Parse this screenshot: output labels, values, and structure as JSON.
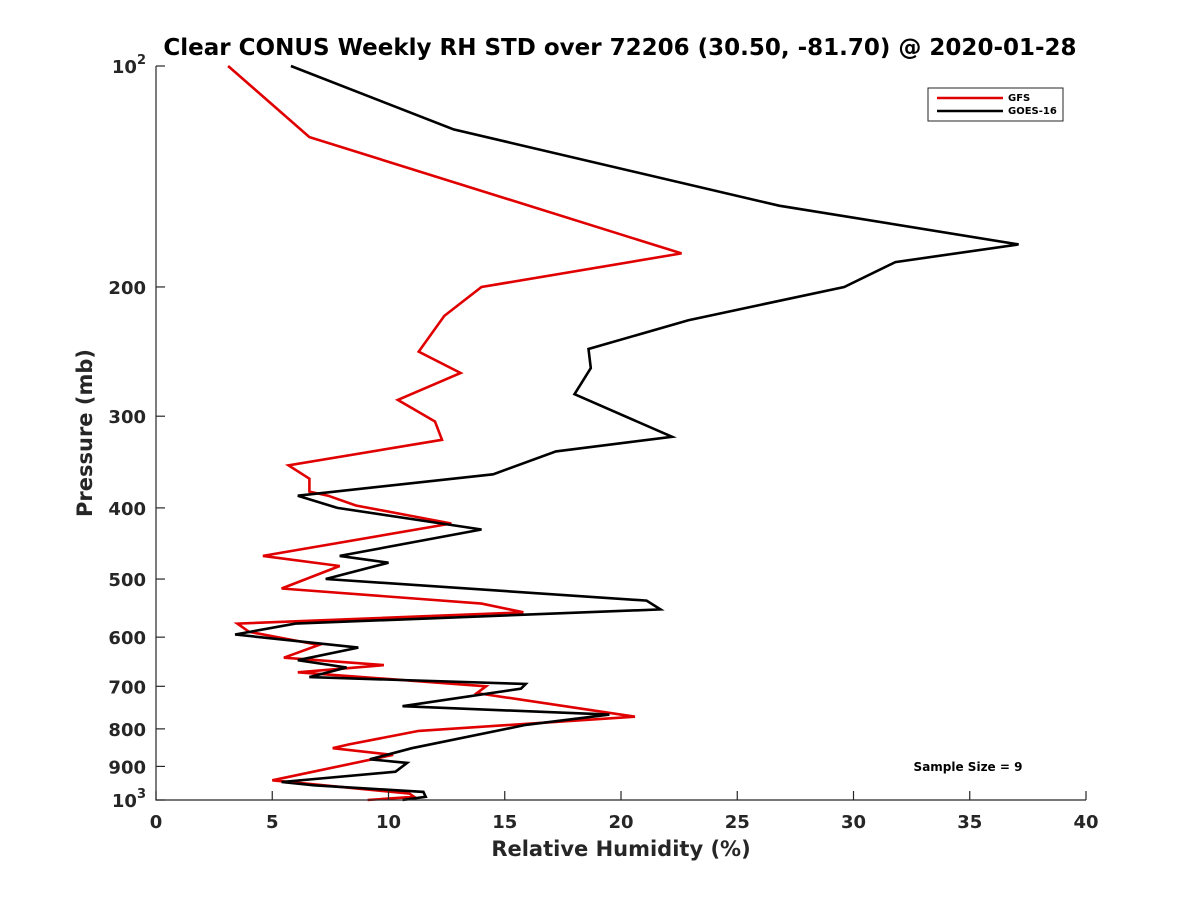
{
  "chart_data": {
    "type": "line",
    "title": "Clear CONUS Weekly RH STD over 72206 (30.50, -81.70) @ 2020-01-28",
    "xlabel": "Relative Humidity (%)",
    "ylabel": "Pressure (mb)",
    "xlim": [
      0,
      40
    ],
    "ylim": [
      100,
      1000
    ],
    "yscale": "log",
    "y_reversed": true,
    "grid": false,
    "legend_position": "top-right",
    "x_ticks": [
      {
        "value": 0,
        "label": "0"
      },
      {
        "value": 5,
        "label": "5"
      },
      {
        "value": 10,
        "label": "10"
      },
      {
        "value": 15,
        "label": "15"
      },
      {
        "value": 20,
        "label": "20"
      },
      {
        "value": 25,
        "label": "25"
      },
      {
        "value": 30,
        "label": "30"
      },
      {
        "value": 35,
        "label": "35"
      },
      {
        "value": 40,
        "label": "40"
      }
    ],
    "y_ticks": [
      {
        "value": 100,
        "label": "10",
        "sup": "2"
      },
      {
        "value": 200,
        "label": "200"
      },
      {
        "value": 300,
        "label": "300"
      },
      {
        "value": 400,
        "label": "400"
      },
      {
        "value": 500,
        "label": "500"
      },
      {
        "value": 600,
        "label": "600"
      },
      {
        "value": 700,
        "label": "700"
      },
      {
        "value": 800,
        "label": "800"
      },
      {
        "value": 900,
        "label": "900"
      },
      {
        "value": 1000,
        "label": "10",
        "sup": "3"
      }
    ],
    "series": [
      {
        "name": "GFS",
        "color": "#e00000",
        "points": [
          [
            3.1,
            100
          ],
          [
            6.6,
            125
          ],
          [
            22.6,
            180
          ],
          [
            14.0,
            200
          ],
          [
            12.4,
            219
          ],
          [
            11.3,
            245
          ],
          [
            13.1,
            262
          ],
          [
            10.4,
            285
          ],
          [
            12.0,
            305
          ],
          [
            12.3,
            323
          ],
          [
            5.7,
            350
          ],
          [
            6.6,
            365
          ],
          [
            6.6,
            380
          ],
          [
            7.4,
            385
          ],
          [
            8.6,
            397
          ],
          [
            12.7,
            420
          ],
          [
            4.6,
            465
          ],
          [
            7.9,
            480
          ],
          [
            5.4,
            515
          ],
          [
            14.0,
            540
          ],
          [
            15.8,
            555
          ],
          [
            3.5,
            575
          ],
          [
            4.0,
            590
          ],
          [
            7.0,
            615
          ],
          [
            5.5,
            640
          ],
          [
            9.8,
            655
          ],
          [
            6.1,
            670
          ],
          [
            14.2,
            700
          ],
          [
            13.8,
            715
          ],
          [
            20.6,
            770
          ],
          [
            11.3,
            805
          ],
          [
            8.3,
            840
          ],
          [
            7.6,
            850
          ],
          [
            10.2,
            868
          ],
          [
            5.0,
            940
          ],
          [
            10.9,
            980
          ],
          [
            11.1,
            990
          ],
          [
            9.1,
            1000
          ]
        ]
      },
      {
        "name": "GOES-16",
        "color": "#000000",
        "points": [
          [
            5.8,
            100
          ],
          [
            12.8,
            122
          ],
          [
            26.8,
            155
          ],
          [
            37.1,
            175
          ],
          [
            31.8,
            185
          ],
          [
            29.6,
            200
          ],
          [
            22.9,
            222
          ],
          [
            18.6,
            243
          ],
          [
            18.7,
            258
          ],
          [
            18.0,
            280
          ],
          [
            22.2,
            320
          ],
          [
            17.2,
            335
          ],
          [
            14.5,
            360
          ],
          [
            6.1,
            385
          ],
          [
            7.8,
            400
          ],
          [
            14.0,
            428
          ],
          [
            7.9,
            465
          ],
          [
            10.0,
            475
          ],
          [
            7.3,
            500
          ],
          [
            21.1,
            535
          ],
          [
            21.7,
            550
          ],
          [
            6.0,
            575
          ],
          [
            3.4,
            595
          ],
          [
            8.7,
            620
          ],
          [
            6.1,
            645
          ],
          [
            8.2,
            660
          ],
          [
            6.6,
            680
          ],
          [
            15.9,
            695
          ],
          [
            15.7,
            705
          ],
          [
            10.6,
            745
          ],
          [
            19.5,
            765
          ],
          [
            15.9,
            790
          ],
          [
            11.0,
            850
          ],
          [
            9.2,
            880
          ],
          [
            10.8,
            890
          ],
          [
            10.3,
            915
          ],
          [
            5.4,
            945
          ],
          [
            6.8,
            955
          ],
          [
            11.5,
            975
          ],
          [
            11.6,
            990
          ],
          [
            10.6,
            1000
          ]
        ]
      }
    ],
    "annotation": "Sample Size = 9"
  }
}
